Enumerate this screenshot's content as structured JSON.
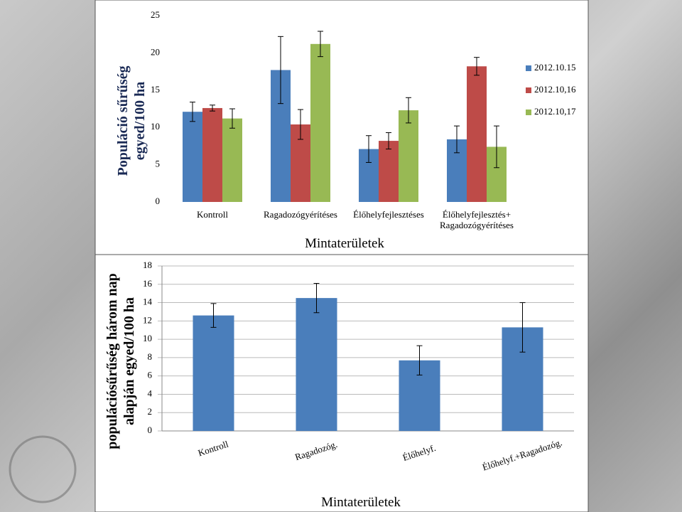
{
  "chart_data": [
    {
      "type": "bar",
      "ylabel": "Populáció sűrűség\negyed/100 ha",
      "xlabel": "Mintaterületek",
      "categories": [
        "Kontroll",
        "Ragadozógyérítéses",
        "Élőhelyfejlesztéses",
        "Élőhelyfejlesztés+\nRagadozógyérítéses"
      ],
      "series": [
        {
          "name": "2012.10.15",
          "color": "#4a7ebb",
          "values": [
            12.1,
            17.7,
            7.1,
            8.4
          ],
          "errors": [
            1.3,
            4.5,
            1.8,
            1.8
          ]
        },
        {
          "name": "2012.10,16",
          "color": "#be4b48",
          "values": [
            12.6,
            10.4,
            8.2,
            18.2
          ],
          "errors": [
            0.4,
            2.0,
            1.1,
            1.2
          ]
        },
        {
          "name": "2012.10,17",
          "color": "#98b954",
          "values": [
            11.2,
            21.2,
            12.3,
            7.4
          ],
          "errors": [
            1.3,
            1.7,
            1.7,
            2.8
          ]
        }
      ],
      "ylim": [
        0,
        25
      ],
      "yticks": [
        0,
        5,
        10,
        15,
        20,
        25
      ],
      "grid": false,
      "legend": "right"
    },
    {
      "type": "bar",
      "ylabel": "populációsűrűség három nap\nalapján egyed/100 ha",
      "xlabel": "Mintaterületek",
      "categories": [
        "Kontroll",
        "Ragadozóg.",
        "Élőhelyf.",
        "Élőhelyf.+Ragadozóg."
      ],
      "series": [
        {
          "name": null,
          "color": "#4a7ebb",
          "values": [
            12.6,
            14.5,
            7.7,
            11.3
          ],
          "errors": [
            1.3,
            1.6,
            1.6,
            2.7
          ]
        }
      ],
      "ylim": [
        0,
        18
      ],
      "yticks": [
        0,
        2,
        4,
        6,
        8,
        10,
        12,
        14,
        16,
        18
      ],
      "grid": true
    }
  ]
}
